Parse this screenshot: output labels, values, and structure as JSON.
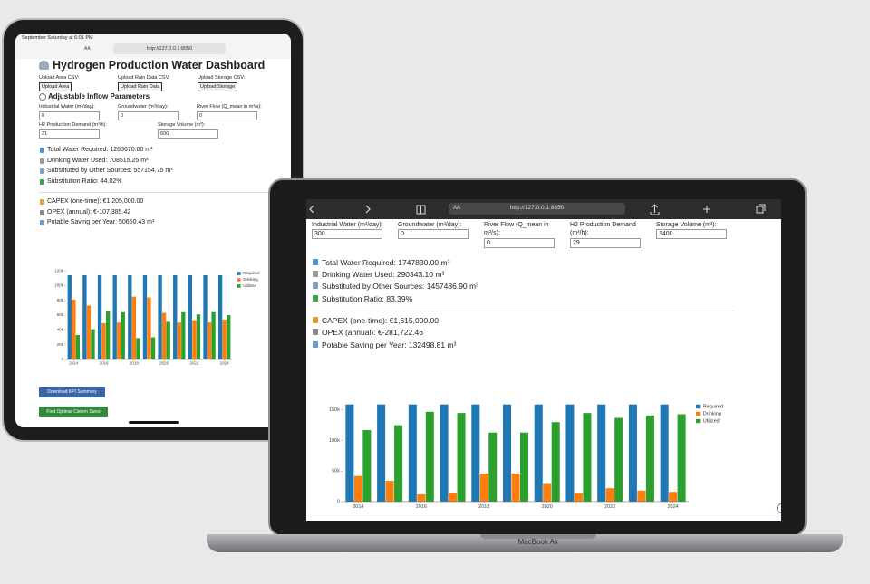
{
  "ipad": {
    "status": "September Saturday at 6:01 PM",
    "aa": "AA",
    "url": "http://127.0.0.1:8050",
    "title": "Hydrogen Production Water Dashboard",
    "uploads": [
      {
        "label": "Upload Area CSV:",
        "button": "Upload Area"
      },
      {
        "label": "Upload Rain Data CSV:",
        "button": "Upload Rain Data"
      },
      {
        "label": "Upload Storage CSV:",
        "button": "Upload Storage"
      }
    ],
    "section": "Adjustable Inflow Parameters",
    "inputs": [
      {
        "label": "Industrial Water (m³/day):",
        "value": 0
      },
      {
        "label": "Groundwater (m³/day):",
        "value": 0
      },
      {
        "label": "River Flow (Q_mean in m³/s):",
        "value": 0
      },
      {
        "label": "H2 Production Demand (m³/h):",
        "value": 21
      },
      {
        "label": "Storage Volume (m³):",
        "value": 600
      }
    ],
    "kpis": [
      "Total Water Required: 1265670.00 m³",
      "Drinking Water Used: 708515.25 m³",
      "Substituted by Other Sources: 557154.75 m³",
      "Substitution Ratio: 44.02%"
    ],
    "costs": [
      "CAPEX (one-time): €1,205,000.00",
      "OPEX (annual): €-107,385.42",
      "Potable Saving per Year: 50650.43 m³"
    ],
    "chart": {
      "type": "bar",
      "x": [
        2014,
        2015,
        2016,
        2017,
        2018,
        2019,
        2020,
        2021,
        2022,
        2023,
        2024
      ],
      "xlim": [
        2013.5,
        2024.5
      ],
      "xticks": [
        2014,
        2016,
        2018,
        2020,
        2022,
        2024
      ],
      "ylim": [
        0,
        125000
      ],
      "yticks": [
        0,
        {
          "value": 20000,
          "label": "20k"
        },
        {
          "value": 40000,
          "label": "40k"
        },
        {
          "value": 60000,
          "label": "60k"
        },
        {
          "value": 80000,
          "label": "80k"
        },
        {
          "value": 100000,
          "label": "100k"
        },
        {
          "value": 120000,
          "label": "120k"
        }
      ],
      "series": [
        {
          "name": "Required",
          "color": "#1f77b4",
          "values": [
            114000,
            114000,
            114000,
            114000,
            114000,
            114000,
            114000,
            114000,
            114000,
            114000,
            114000
          ]
        },
        {
          "name": "Drinking",
          "color": "#ff7f0e",
          "values": [
            81000,
            73000,
            49000,
            50000,
            85000,
            84000,
            63000,
            50000,
            53000,
            50000,
            54000
          ]
        },
        {
          "name": "Utilized",
          "color": "#2ca02c",
          "values": [
            33000,
            41000,
            65000,
            64000,
            29000,
            30000,
            51000,
            64000,
            61000,
            64000,
            60000
          ]
        }
      ]
    },
    "buttons": [
      "Download KPI Summary",
      "Find Optimal Cistern Sizes"
    ]
  },
  "macbook": {
    "aa": "AA",
    "url": "http://127.0.0.1:8050",
    "inputs": [
      {
        "label": "Industrial Water (m³/day):",
        "value": 300
      },
      {
        "label": "Groundwater (m³/day):",
        "value": 0
      },
      {
        "label": "River Flow (Q_mean in m³/s):",
        "value": 0
      },
      {
        "label": "H2 Production Demand (m³/h):",
        "value": 29
      },
      {
        "label": "Storage Volume (m³):",
        "value": 1400
      }
    ],
    "kpis": [
      "Total Water Required: 1747830.00 m³",
      "Drinking Water Used: 290343.10 m³",
      "Substituted by Other Sources: 1457486.90 m³",
      "Substitution Ratio: 83.39%"
    ],
    "costs": [
      "CAPEX (one-time): €1,615,000.00",
      "OPEX (annual): €-281,722.46",
      "Potable Saving per Year: 132498.81 m³"
    ],
    "chart": {
      "type": "bar",
      "x": [
        2014,
        2015,
        2016,
        2017,
        2018,
        2019,
        2020,
        2021,
        2022,
        2023,
        2024
      ],
      "xlim": [
        2013.5,
        2024.5
      ],
      "xticks": [
        2014,
        2016,
        2018,
        2020,
        2022,
        2024
      ],
      "ylim": [
        0,
        160000
      ],
      "yticks": [
        0,
        {
          "value": 50000,
          "label": "50k"
        },
        {
          "value": 100000,
          "label": "100k"
        },
        {
          "value": 150000,
          "label": "150k"
        }
      ],
      "series": [
        {
          "name": "Required",
          "color": "#1f77b4",
          "values": [
            159000,
            159000,
            159000,
            159000,
            159000,
            159000,
            159000,
            159000,
            159000,
            159000,
            159000
          ]
        },
        {
          "name": "Drinking",
          "color": "#ff7f0e",
          "values": [
            42000,
            34000,
            12000,
            14000,
            46000,
            46000,
            29000,
            14000,
            22000,
            18000,
            16000
          ]
        },
        {
          "name": "Utilized",
          "color": "#2ca02c",
          "values": [
            117000,
            125000,
            147000,
            145000,
            113000,
            113000,
            130000,
            145000,
            137000,
            141000,
            143000
          ]
        }
      ]
    },
    "brand": "MacBook Air"
  }
}
